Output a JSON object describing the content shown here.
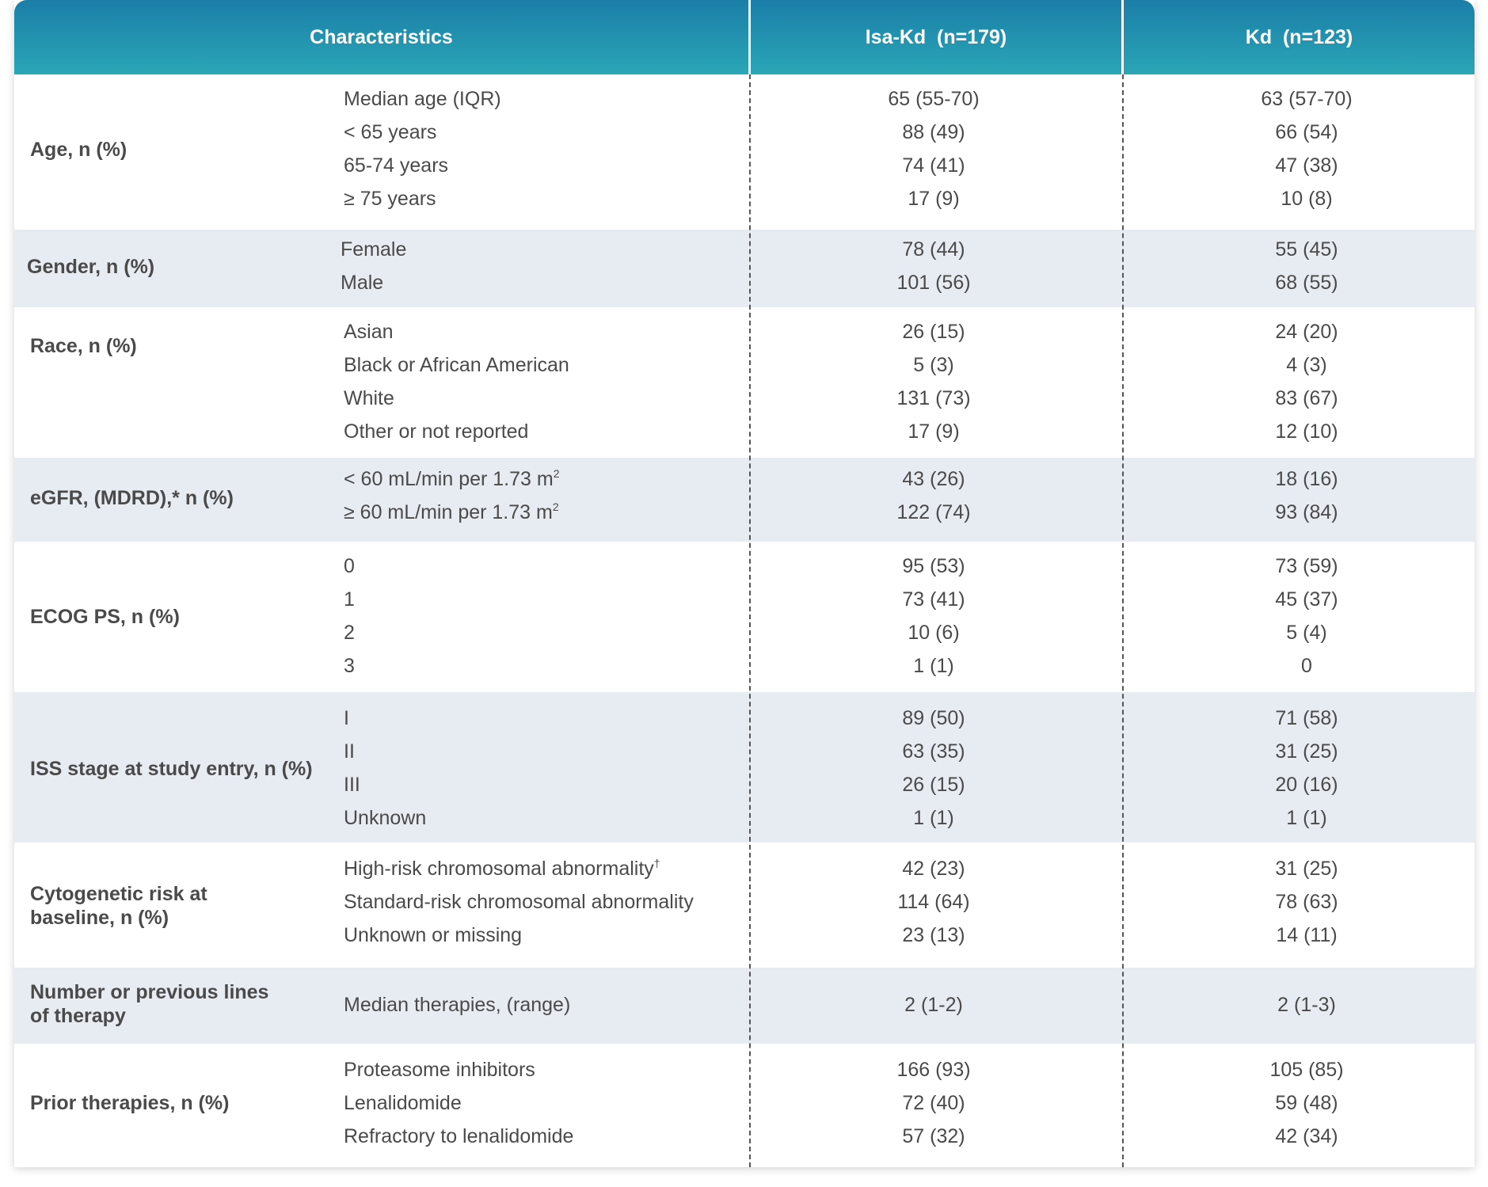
{
  "header": {
    "characteristics": "Characteristics",
    "col1": "Isa-Kd  (n=179)",
    "col2": "Kd  (n=123)"
  },
  "groups": [
    {
      "label": "Age, n (%)",
      "rows": [
        {
          "sub": "Median age (IQR)",
          "c1": "65 (55-70)",
          "c2": "63 (57-70)"
        },
        {
          "sub": "< 65 years",
          "c1": "88 (49)",
          "c2": "66 (54)"
        },
        {
          "sub": "65-74 years",
          "c1": "74 (41)",
          "c2": "47 (38)"
        },
        {
          "sub": "≥ 75 years",
          "c1": "17 (9)",
          "c2": "10 (8)"
        }
      ]
    },
    {
      "label": "Gender, n (%)",
      "rows": [
        {
          "sub": "Female",
          "c1": "78 (44)",
          "c2": "55 (45)"
        },
        {
          "sub": "Male",
          "c1": "101 (56)",
          "c2": "68 (55)"
        }
      ]
    },
    {
      "label": "Race, n (%)",
      "rows": [
        {
          "sub": "Asian",
          "c1": "26 (15)",
          "c2": "24 (20)"
        },
        {
          "sub": "Black or African American",
          "c1": "5 (3)",
          "c2": "4 (3)"
        },
        {
          "sub": "White",
          "c1": "131 (73)",
          "c2": "83 (67)"
        },
        {
          "sub": "Other or not reported",
          "c1": "17 (9)",
          "c2": "12 (10)"
        }
      ]
    },
    {
      "label": "eGFR, (MDRD),* n (%)",
      "rows": [
        {
          "sub": "< 60 mL/min per 1.73 m",
          "sup": "2",
          "c1": "43 (26)",
          "c2": "18 (16)"
        },
        {
          "sub": "≥ 60 mL/min per 1.73 m",
          "sup": "2",
          "c1": "122 (74)",
          "c2": "93 (84)"
        }
      ]
    },
    {
      "label": "ECOG PS, n (%)",
      "rows": [
        {
          "sub": "0",
          "c1": "95 (53)",
          "c2": "73 (59)"
        },
        {
          "sub": "1",
          "c1": "73 (41)",
          "c2": "45 (37)"
        },
        {
          "sub": "2",
          "c1": "10 (6)",
          "c2": "5 (4)"
        },
        {
          "sub": "3",
          "c1": "1 (1)",
          "c2": "0"
        }
      ]
    },
    {
      "label": "ISS stage at study entry, n (%)",
      "rows": [
        {
          "sub": "I",
          "c1": "89 (50)",
          "c2": "71 (58)"
        },
        {
          "sub": "II",
          "c1": "63 (35)",
          "c2": "31 (25)"
        },
        {
          "sub": "III",
          "c1": "26 (15)",
          "c2": "20 (16)"
        },
        {
          "sub": "Unknown",
          "c1": "1 (1)",
          "c2": "1 (1)"
        }
      ]
    },
    {
      "label_lines": [
        "Cytogenetic risk at",
        "baseline, n (%)"
      ],
      "rows": [
        {
          "sub": "High-risk chromosomal abnormality",
          "sup": "†",
          "c1": "42 (23)",
          "c2": "31 (25)"
        },
        {
          "sub": "Standard-risk chromosomal abnormality",
          "c1": "114 (64)",
          "c2": "78 (63)"
        },
        {
          "sub": "Unknown or missing",
          "c1": "23 (13)",
          "c2": "14 (11)"
        }
      ]
    },
    {
      "label_lines": [
        "Number or previous lines",
        "of therapy"
      ],
      "rows": [
        {
          "sub": "Median therapies, (range)",
          "c1": "2 (1-2)",
          "c2": "2 (1-3)"
        }
      ]
    },
    {
      "label": "Prior therapies, n (%)",
      "rows": [
        {
          "sub": "Proteasome inhibitors",
          "c1": "166 (93)",
          "c2": "105 (85)"
        },
        {
          "sub": "Lenalidomide",
          "c1": "72 (40)",
          "c2": "59 (48)"
        },
        {
          "sub": "Refractory to lenalidomide",
          "c1": "57 (32)",
          "c2": "42 (34)"
        }
      ]
    }
  ]
}
